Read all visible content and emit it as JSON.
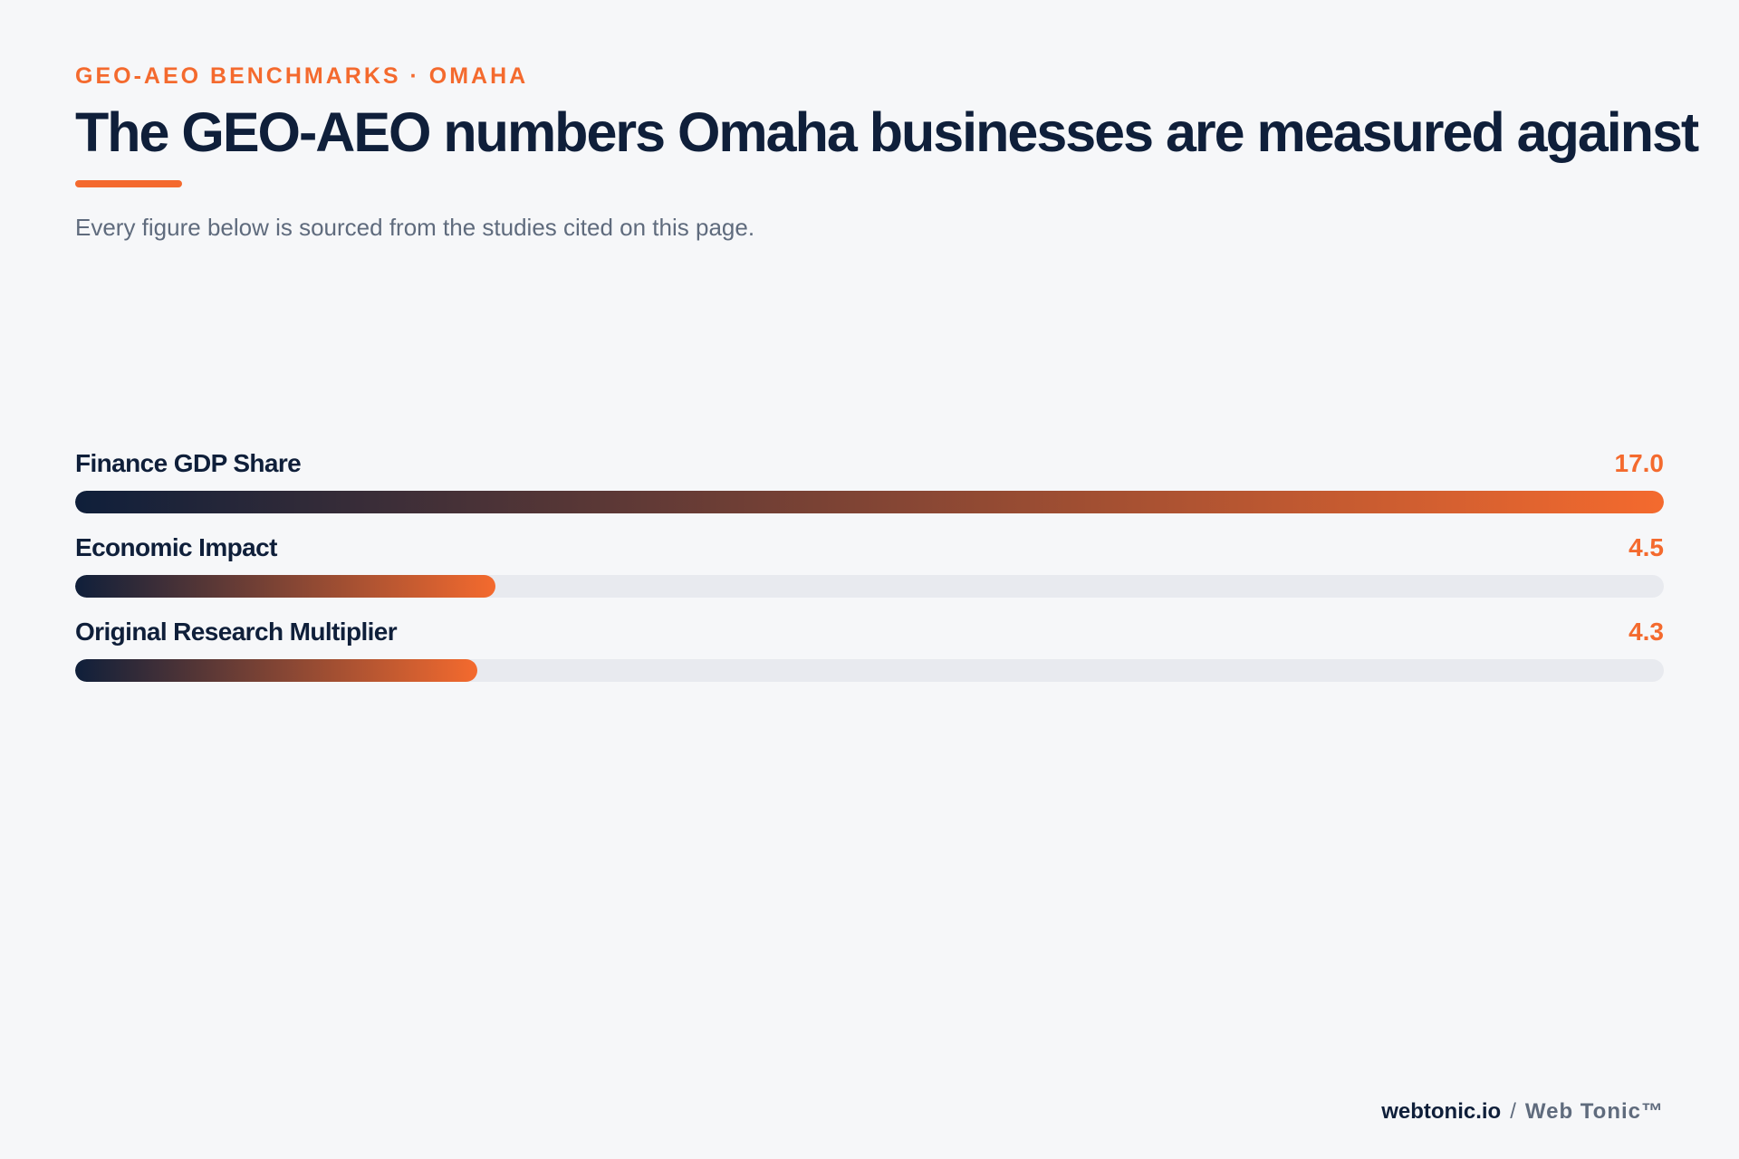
{
  "header": {
    "eyebrow": "GEO-AEO BENCHMARKS · OMAHA",
    "title": "The GEO-AEO numbers Omaha businesses are measured against",
    "subtitle": "Every figure below is sourced from the studies cited on this page."
  },
  "colors": {
    "accent": "#f46a2e",
    "navy": "#0f1f3a",
    "track": "#e8eaef",
    "background": "#f6f7f9"
  },
  "chart_data": {
    "type": "bar",
    "orientation": "horizontal",
    "categories": [
      "Finance GDP Share",
      "Economic Impact",
      "Original Research Multiplier"
    ],
    "values": [
      17.0,
      4.5,
      4.3
    ],
    "value_labels": [
      "17.0",
      "4.5",
      "4.3"
    ],
    "xlim": [
      0,
      17.0
    ],
    "title": "",
    "xlabel": "",
    "ylabel": "",
    "grid": false,
    "legend": "none"
  },
  "footer": {
    "domain": "webtonic.io",
    "separator": "/",
    "brand": "Web Tonic™"
  }
}
